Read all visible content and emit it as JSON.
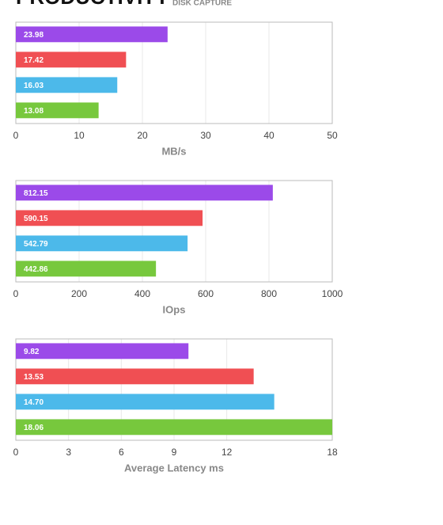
{
  "header": {
    "title": "PRODUCTIVITY",
    "subtitle": "DISK CAPTURE"
  },
  "chart_data": [
    {
      "type": "bar",
      "orientation": "horizontal",
      "values": [
        23.98,
        17.42,
        16.03,
        13.08
      ],
      "colors": [
        "#9b4ae9",
        "#f04f53",
        "#4cb9ea",
        "#77c83d"
      ],
      "xlim": [
        0,
        50
      ],
      "xticks": [
        0,
        10,
        20,
        30,
        40,
        50
      ],
      "xlabel": "MB/s",
      "grid": true
    },
    {
      "type": "bar",
      "orientation": "horizontal",
      "values": [
        812.15,
        590.15,
        542.79,
        442.86
      ],
      "colors": [
        "#9b4ae9",
        "#f04f53",
        "#4cb9ea",
        "#77c83d"
      ],
      "xlim": [
        0,
        1000
      ],
      "xticks": [
        0,
        200,
        400,
        600,
        800,
        1000
      ],
      "xlabel": "IOps",
      "grid": true
    },
    {
      "type": "bar",
      "orientation": "horizontal",
      "values": [
        9.82,
        13.53,
        14.7,
        18.06
      ],
      "value_labels": [
        "9.82",
        "13.53",
        "14.70",
        "18.06"
      ],
      "colors": [
        "#9b4ae9",
        "#f04f53",
        "#4cb9ea",
        "#77c83d"
      ],
      "xlim": [
        0,
        18
      ],
      "xticks": [
        0,
        3,
        6,
        9,
        12,
        18
      ],
      "xlabel": "Average Latency ms",
      "grid": true
    }
  ]
}
